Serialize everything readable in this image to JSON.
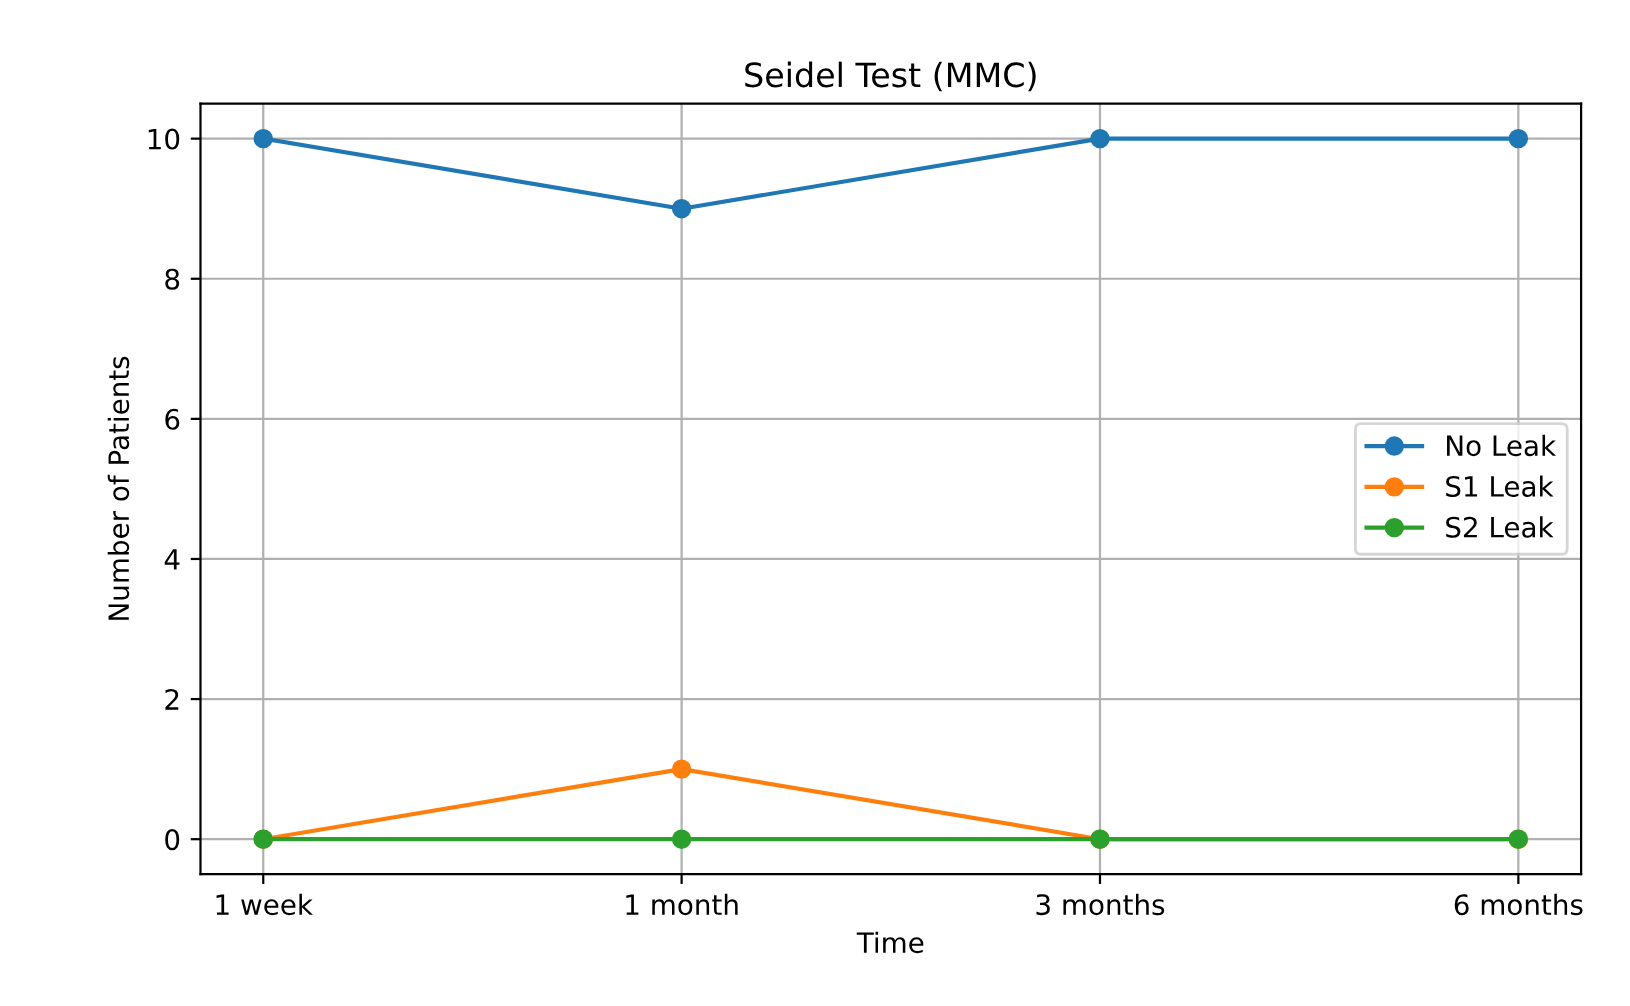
{
  "chart_data": {
    "type": "line",
    "title": "Seidel Test (MMC)",
    "xlabel": "Time",
    "ylabel": "Number of Patients",
    "categories": [
      "1 week",
      "1 month",
      "3 months",
      "6 months"
    ],
    "series": [
      {
        "name": "No Leak",
        "color": "#1f77b4",
        "values": [
          10,
          9,
          10,
          10
        ]
      },
      {
        "name": "S1 Leak",
        "color": "#ff7f0e",
        "values": [
          0,
          1,
          0,
          0
        ]
      },
      {
        "name": "S2 Leak",
        "color": "#2ca02c",
        "values": [
          0,
          0,
          0,
          0
        ]
      }
    ],
    "ylim": [
      -0.5,
      10.5
    ],
    "yticks": [
      0,
      2,
      4,
      6,
      8,
      10
    ],
    "grid": true,
    "legend": "center right",
    "marker": "circle",
    "line_style": "solid"
  }
}
